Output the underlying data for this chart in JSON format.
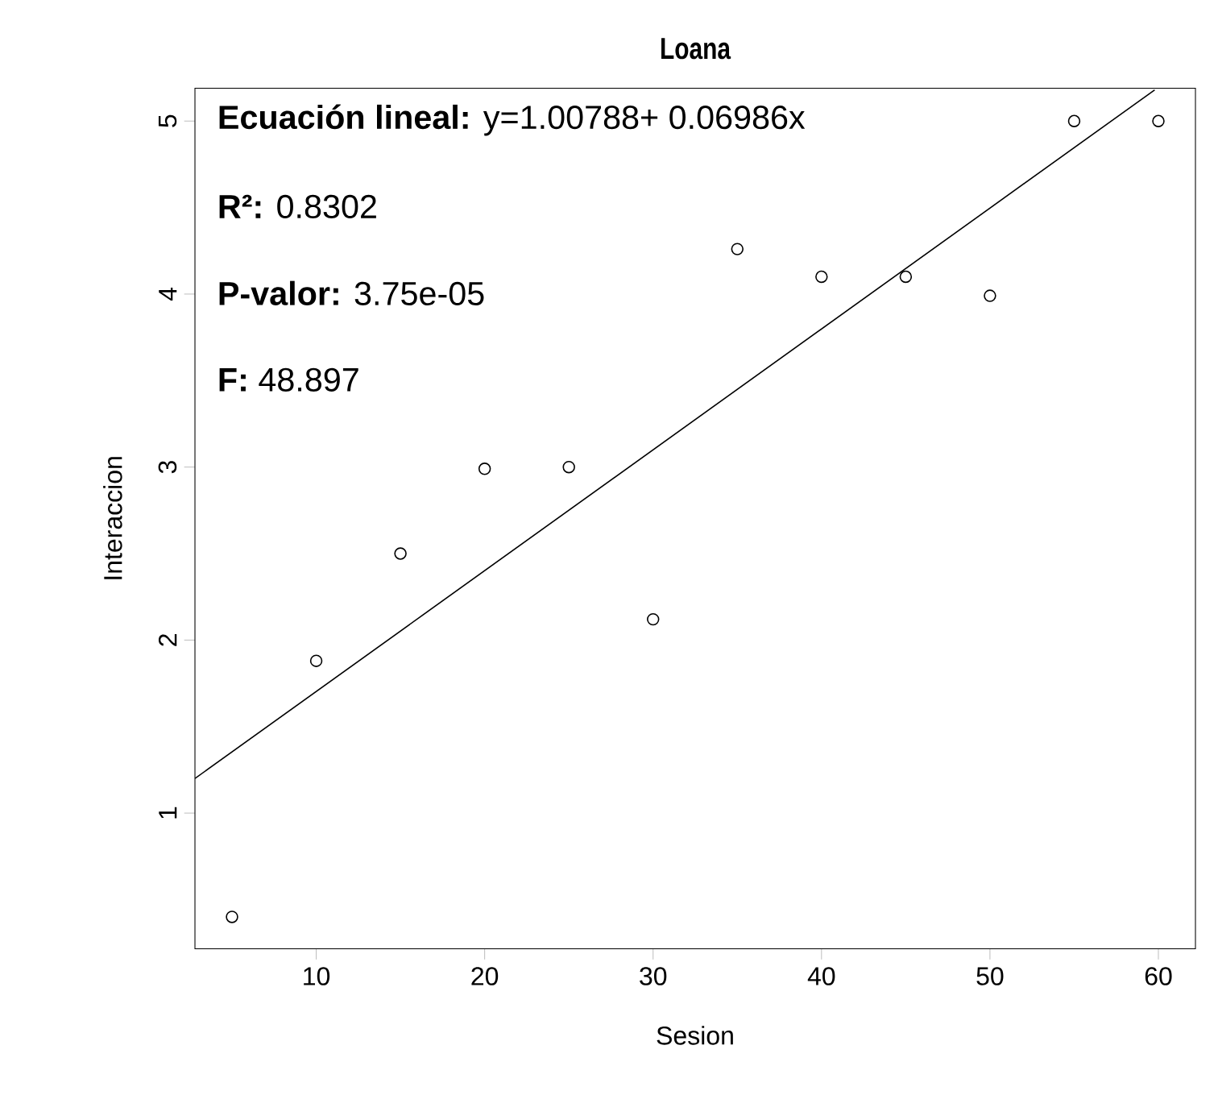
{
  "chart_data": {
    "type": "scatter",
    "title": "Loana",
    "xlabel": "Sesion",
    "ylabel": "Interaccion",
    "x": [
      5,
      10,
      15,
      20,
      25,
      30,
      35,
      40,
      45,
      50,
      55,
      60
    ],
    "series": [
      {
        "color": "#000000",
        "marker": "circle",
        "values": [
          0.4,
          1.88,
          2.5,
          2.99,
          3.0,
          2.12,
          4.26,
          4.1,
          4.1,
          3.99,
          5.0,
          5.0
        ]
      },
      {
        "type": "line",
        "color": "#000000",
        "marker": "none",
        "line_style": "solid",
        "x": [
          2.8,
          59.78
        ],
        "values": [
          1.2,
          5.18
        ]
      }
    ],
    "annotations": [
      "**Ecuación lineal:** y=1.00788+ 0.06986x",
      "**R²:** 0.8302",
      "**P-valor:** 3.75e-05",
      "**F:** 48.897"
    ],
    "xlim": [
      2.8,
      62.2
    ],
    "ylim": [
      0.216,
      5.19
    ],
    "xticks": [
      10,
      20,
      30,
      40,
      50,
      60
    ],
    "yticks": [
      1,
      2,
      3,
      4,
      5
    ],
    "grid": false
  }
}
